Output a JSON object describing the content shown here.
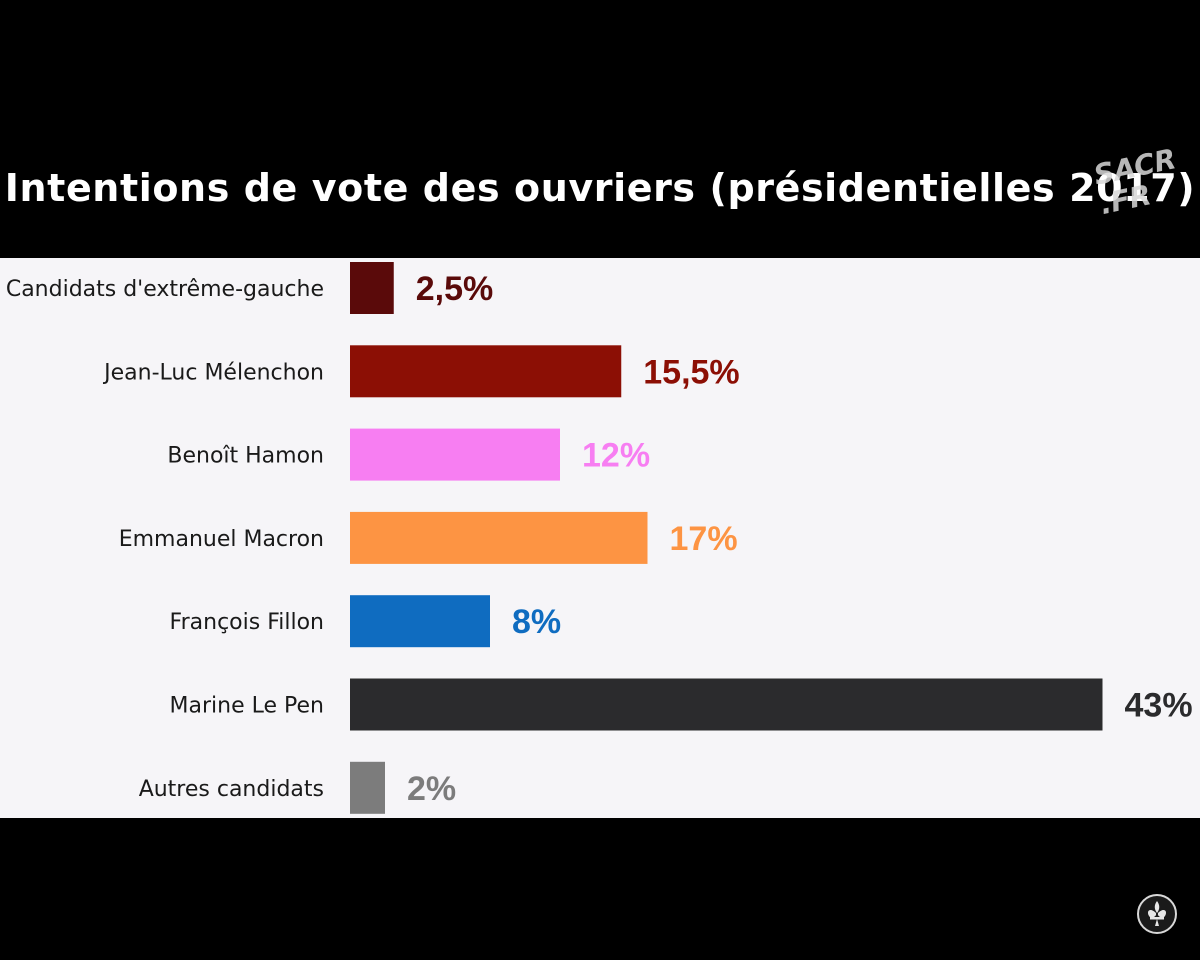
{
  "title": "Intentions de vote des ouvriers (présidentielles 2017)",
  "watermark": {
    "line1": "SACR",
    "line2": ".FR"
  },
  "logo": {
    "icon": "fleur-de-lis-icon"
  },
  "chart_data": {
    "type": "bar",
    "orientation": "horizontal",
    "title": "Intentions de vote des ouvriers (présidentielles 2017)",
    "xlabel": "",
    "ylabel": "",
    "xlim": [
      0,
      43
    ],
    "grid": false,
    "legend": "none",
    "categories": [
      "Candidats d'extrême-gauche",
      "Jean-Luc Mélenchon",
      "Benoît Hamon",
      "Emmanuel Macron",
      "François Fillon",
      "Marine Le Pen",
      "Autres candidats"
    ],
    "values": [
      2.5,
      15.5,
      12,
      17,
      8,
      43,
      2
    ],
    "value_labels": [
      "2,5%",
      "15,5%",
      "12%",
      "17%",
      "8%",
      "43%",
      "2%"
    ],
    "colors": [
      "#5a0a0a",
      "#8c0f05",
      "#f77ef2",
      "#fd9443",
      "#0f6cc0",
      "#2b2b2d",
      "#7c7c7c"
    ]
  }
}
